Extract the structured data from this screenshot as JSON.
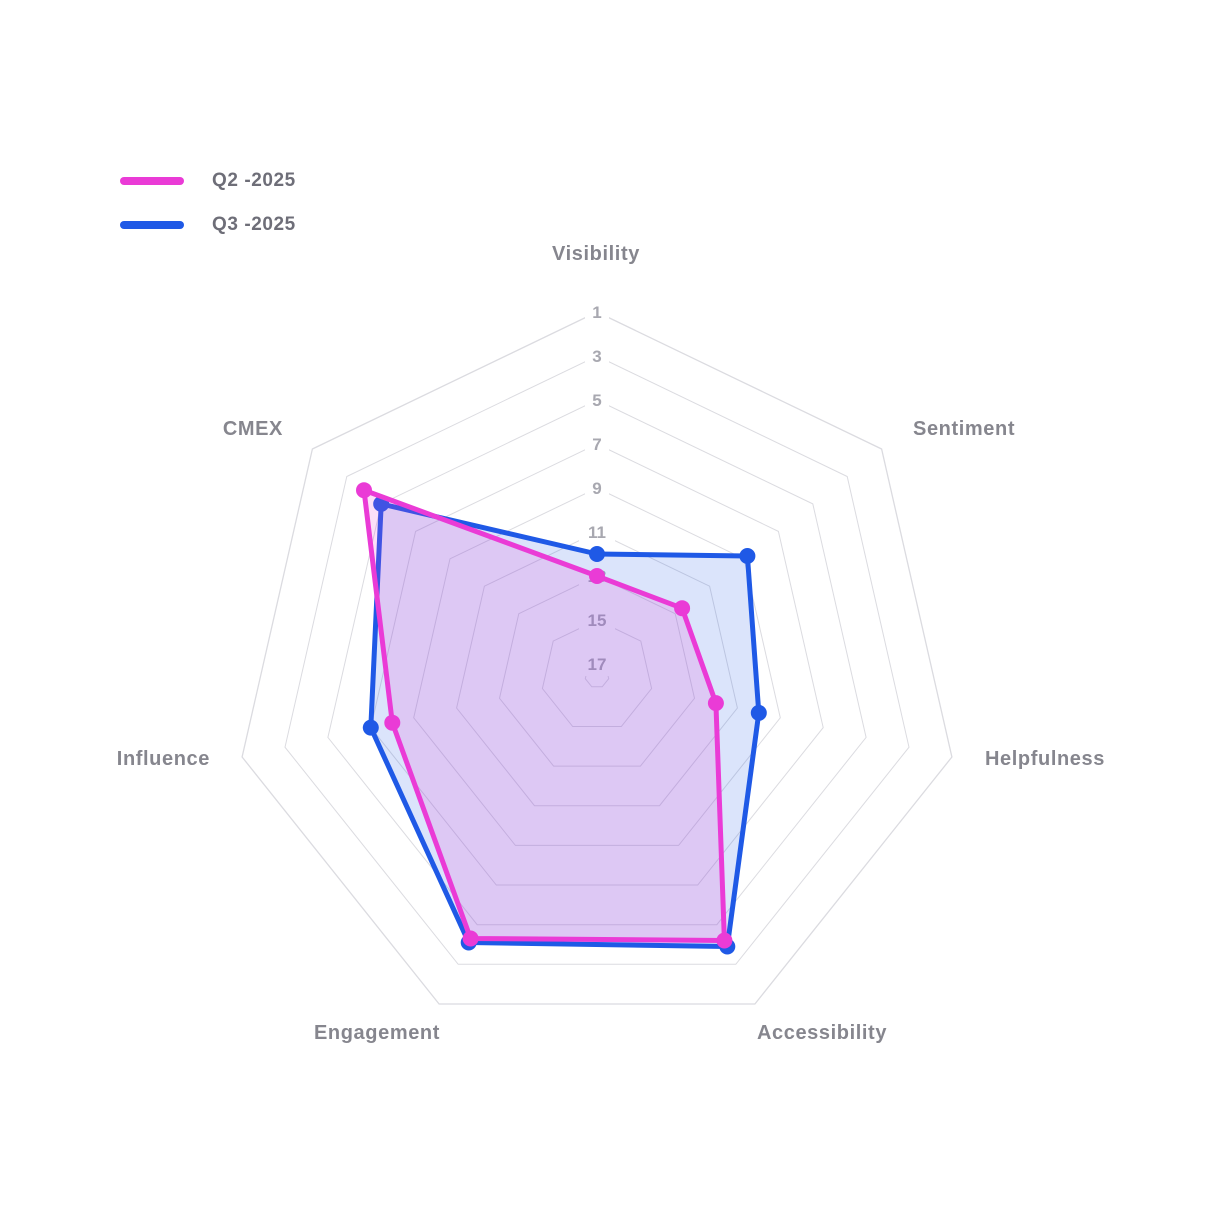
{
  "chart_data": {
    "type": "radar",
    "title": "",
    "categories": [
      "Visibility",
      "Sentiment",
      "Helpfulness",
      "Accessibility",
      "Engagement",
      "Influence",
      "CMEX"
    ],
    "series": [
      {
        "name": "Q2 -2025",
        "color": "#ea3bd6",
        "fill_opacity": 0.16,
        "values": [
          13,
          12.6,
          12,
          4.2,
          4.3,
          8,
          4
        ]
      },
      {
        "name": "Q3 -2025",
        "color": "#1f59e6",
        "fill_opacity": 0.16,
        "values": [
          12,
          8.8,
          10,
          3.9,
          4.1,
          7,
          5
        ]
      }
    ],
    "scale": {
      "reversed": true,
      "outer_value": 1,
      "ticks": [
        1,
        3,
        5,
        7,
        9,
        11,
        13,
        15,
        17
      ],
      "tick_axis": "Visibility",
      "note": "rank scale: 1 at outer edge, higher ranks toward center"
    },
    "legend_position": "top-left",
    "grid": {
      "shape": "heptagon",
      "rings": 9,
      "radial_spokes": false,
      "ring_color": "#dbdbe0"
    },
    "colors": {
      "q2_line": "#ea3bd6",
      "q3_line": "#1f59e6",
      "category_label": "#86868e",
      "tick_label": "#a8a8b0",
      "legend_text": "#6e6e78",
      "background": "#ffffff"
    }
  }
}
